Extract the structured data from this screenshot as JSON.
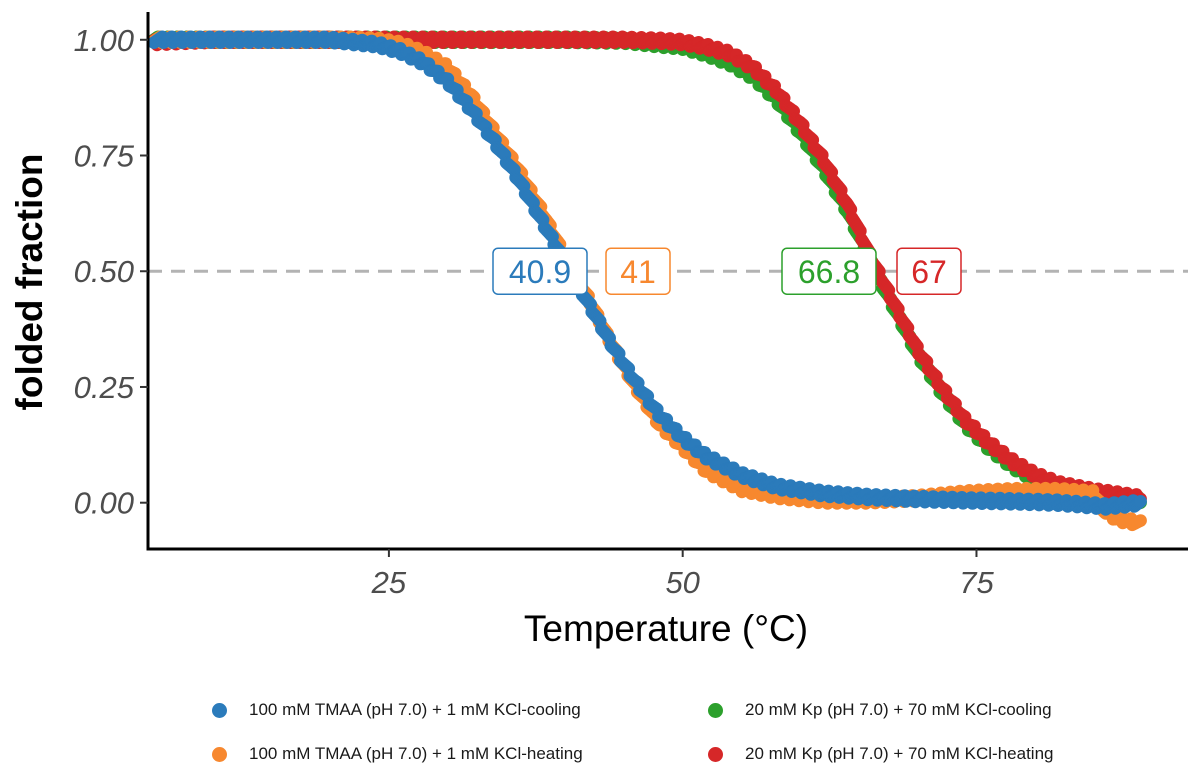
{
  "chart_data": {
    "type": "scatter",
    "xlabel": "Temperature (°C)",
    "ylabel": "folded fraction",
    "xlim": [
      4.5,
      93
    ],
    "ylim": [
      -0.1,
      1.06
    ],
    "x_ticks": [
      25,
      50,
      75
    ],
    "x_tick_labels": [
      "25",
      "50",
      "75"
    ],
    "y_ticks": [
      0,
      0.25,
      0.5,
      0.75,
      1.0
    ],
    "y_tick_labels": [
      "0.00",
      "0.25",
      "0.50",
      "0.75",
      "1.00"
    ],
    "grid": false,
    "reference_line": {
      "y": 0.5,
      "style": "dashed",
      "color": "#b3b3b3"
    },
    "legend_position": "bottom",
    "series": [
      {
        "name": "100 mM TMAA (pH 7.0) + 1 mM KCl-cooling",
        "color": "#2b7bbb",
        "tm_label": "40.9",
        "x": [
          5,
          10,
          15,
          20,
          22,
          24,
          26,
          28,
          30,
          32,
          34,
          36,
          38,
          40,
          42,
          44,
          46,
          48,
          50,
          52,
          55,
          58,
          62,
          66,
          70,
          74,
          78,
          82,
          86,
          89
        ],
        "y": [
          1.0,
          1.0,
          1.0,
          1.0,
          0.995,
          0.99,
          0.975,
          0.95,
          0.91,
          0.85,
          0.78,
          0.7,
          0.61,
          0.52,
          0.43,
          0.34,
          0.26,
          0.19,
          0.14,
          0.1,
          0.06,
          0.035,
          0.02,
          0.012,
          0.008,
          0.005,
          0.003,
          0.0,
          -0.008,
          0.0
        ]
      },
      {
        "name": "100 mM TMAA (pH 7.0) + 1 mM KCl-heating",
        "color": "#f7882f",
        "tm_label": "41",
        "x": [
          5,
          10,
          15,
          20,
          22,
          24,
          26,
          28,
          30,
          32,
          34,
          36,
          38,
          40,
          42,
          44,
          46,
          48,
          50,
          52,
          55,
          58,
          62,
          66,
          70,
          74,
          78,
          82,
          85,
          86,
          87,
          89
        ],
        "y": [
          1.0,
          1.0,
          1.0,
          1.0,
          1.0,
          0.998,
          0.99,
          0.97,
          0.94,
          0.88,
          0.8,
          0.72,
          0.63,
          0.53,
          0.44,
          0.34,
          0.25,
          0.17,
          0.12,
          0.07,
          0.03,
          0.015,
          0.005,
          0.005,
          0.01,
          0.02,
          0.025,
          0.025,
          0.02,
          -0.02,
          -0.035,
          -0.045
        ]
      },
      {
        "name": "20 mM Kp (pH 7.0) + 70 mM KCl-cooling",
        "color": "#2ca02c",
        "tm_label": "66.8",
        "x": [
          5,
          10,
          20,
          30,
          40,
          45,
          48,
          50,
          52,
          54,
          56,
          58,
          60,
          62,
          64,
          66,
          68,
          70,
          72,
          74,
          76,
          78,
          80,
          82,
          85,
          89
        ],
        "y": [
          1.0,
          1.0,
          1.0,
          1.0,
          1.0,
          0.998,
          0.99,
          0.985,
          0.97,
          0.95,
          0.92,
          0.87,
          0.8,
          0.72,
          0.63,
          0.52,
          0.42,
          0.32,
          0.24,
          0.17,
          0.12,
          0.08,
          0.05,
          0.035,
          0.02,
          0.005
        ]
      },
      {
        "name": "20 mM Kp (pH 7.0) + 70 mM KCl-heating",
        "color": "#d62728",
        "tm_label": "67",
        "x": [
          5,
          10,
          20,
          30,
          40,
          45,
          48,
          50,
          52,
          54,
          56,
          58,
          60,
          62,
          64,
          66,
          68,
          70,
          72,
          74,
          76,
          78,
          80,
          82,
          85,
          89
        ],
        "y": [
          0.995,
          1.0,
          1.0,
          1.0,
          1.0,
          1.0,
          0.998,
          0.995,
          0.985,
          0.97,
          0.94,
          0.89,
          0.82,
          0.74,
          0.645,
          0.53,
          0.43,
          0.33,
          0.25,
          0.18,
          0.13,
          0.09,
          0.06,
          0.04,
          0.025,
          0.01
        ]
      }
    ]
  }
}
